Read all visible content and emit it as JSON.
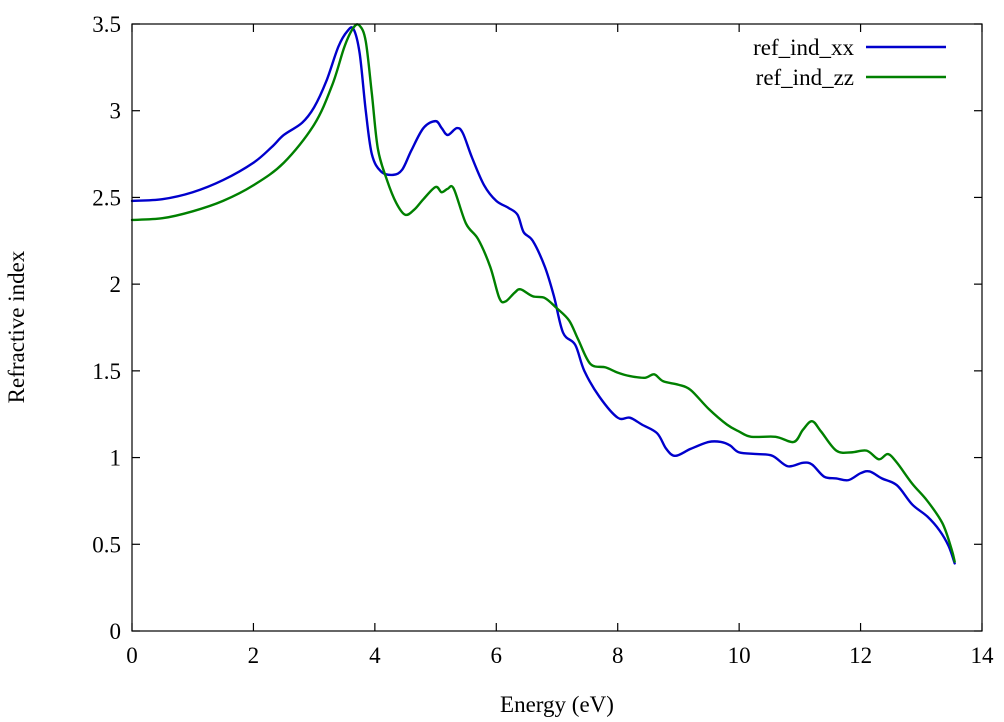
{
  "chart_data": {
    "type": "line",
    "title": "",
    "xlabel": "Energy (eV)",
    "ylabel": "Refractive index",
    "xlim": [
      0,
      14
    ],
    "ylim": [
      0,
      3.5
    ],
    "xticks": [
      0,
      2,
      4,
      6,
      8,
      10,
      12,
      14
    ],
    "yticks": [
      0,
      0.5,
      1,
      1.5,
      2,
      2.5,
      3,
      3.5
    ],
    "xtick_labels": [
      "0",
      "2",
      "4",
      "6",
      "8",
      "10",
      "12",
      "14"
    ],
    "ytick_labels": [
      "0",
      "0.5",
      "1",
      "1.5",
      "2",
      "2.5",
      "3",
      "3.5"
    ],
    "grid": false,
    "legend_position": "top-right",
    "series": [
      {
        "name": "ref_ind_xx",
        "color": "#0000cc",
        "points": [
          [
            0,
            2.48
          ],
          [
            0.5,
            2.49
          ],
          [
            1.0,
            2.53
          ],
          [
            1.5,
            2.6
          ],
          [
            2.0,
            2.7
          ],
          [
            2.3,
            2.79
          ],
          [
            2.5,
            2.86
          ],
          [
            2.8,
            2.93
          ],
          [
            3.0,
            3.02
          ],
          [
            3.2,
            3.17
          ],
          [
            3.4,
            3.37
          ],
          [
            3.55,
            3.46
          ],
          [
            3.65,
            3.47
          ],
          [
            3.75,
            3.33
          ],
          [
            3.85,
            3.0
          ],
          [
            3.95,
            2.75
          ],
          [
            4.1,
            2.65
          ],
          [
            4.3,
            2.63
          ],
          [
            4.45,
            2.66
          ],
          [
            4.6,
            2.77
          ],
          [
            4.8,
            2.9
          ],
          [
            5.0,
            2.94
          ],
          [
            5.1,
            2.9
          ],
          [
            5.2,
            2.86
          ],
          [
            5.35,
            2.9
          ],
          [
            5.45,
            2.87
          ],
          [
            5.6,
            2.73
          ],
          [
            5.8,
            2.57
          ],
          [
            6.0,
            2.48
          ],
          [
            6.2,
            2.44
          ],
          [
            6.35,
            2.4
          ],
          [
            6.45,
            2.3
          ],
          [
            6.6,
            2.25
          ],
          [
            6.8,
            2.1
          ],
          [
            6.95,
            1.93
          ],
          [
            7.1,
            1.72
          ],
          [
            7.3,
            1.65
          ],
          [
            7.45,
            1.5
          ],
          [
            7.7,
            1.35
          ],
          [
            8.0,
            1.23
          ],
          [
            8.2,
            1.23
          ],
          [
            8.4,
            1.19
          ],
          [
            8.65,
            1.14
          ],
          [
            8.8,
            1.05
          ],
          [
            8.95,
            1.01
          ],
          [
            9.2,
            1.05
          ],
          [
            9.5,
            1.09
          ],
          [
            9.7,
            1.09
          ],
          [
            9.85,
            1.07
          ],
          [
            10.0,
            1.03
          ],
          [
            10.3,
            1.02
          ],
          [
            10.55,
            1.01
          ],
          [
            10.8,
            0.95
          ],
          [
            11.05,
            0.97
          ],
          [
            11.2,
            0.96
          ],
          [
            11.4,
            0.89
          ],
          [
            11.6,
            0.88
          ],
          [
            11.8,
            0.87
          ],
          [
            12.0,
            0.91
          ],
          [
            12.15,
            0.92
          ],
          [
            12.35,
            0.88
          ],
          [
            12.6,
            0.84
          ],
          [
            12.85,
            0.73
          ],
          [
            13.1,
            0.66
          ],
          [
            13.3,
            0.58
          ],
          [
            13.45,
            0.49
          ],
          [
            13.55,
            0.39
          ]
        ]
      },
      {
        "name": "ref_ind_zz",
        "color": "#008000",
        "points": [
          [
            0,
            2.37
          ],
          [
            0.5,
            2.38
          ],
          [
            1.0,
            2.42
          ],
          [
            1.5,
            2.48
          ],
          [
            2.0,
            2.57
          ],
          [
            2.5,
            2.7
          ],
          [
            3.0,
            2.92
          ],
          [
            3.3,
            3.15
          ],
          [
            3.5,
            3.37
          ],
          [
            3.65,
            3.48
          ],
          [
            3.75,
            3.49
          ],
          [
            3.85,
            3.4
          ],
          [
            3.95,
            3.1
          ],
          [
            4.05,
            2.78
          ],
          [
            4.2,
            2.6
          ],
          [
            4.35,
            2.47
          ],
          [
            4.5,
            2.4
          ],
          [
            4.65,
            2.43
          ],
          [
            4.8,
            2.49
          ],
          [
            5.0,
            2.56
          ],
          [
            5.1,
            2.53
          ],
          [
            5.2,
            2.55
          ],
          [
            5.3,
            2.55
          ],
          [
            5.5,
            2.35
          ],
          [
            5.7,
            2.26
          ],
          [
            5.9,
            2.1
          ],
          [
            6.05,
            1.92
          ],
          [
            6.15,
            1.9
          ],
          [
            6.3,
            1.95
          ],
          [
            6.4,
            1.97
          ],
          [
            6.6,
            1.93
          ],
          [
            6.8,
            1.92
          ],
          [
            7.0,
            1.86
          ],
          [
            7.2,
            1.79
          ],
          [
            7.35,
            1.68
          ],
          [
            7.55,
            1.54
          ],
          [
            7.8,
            1.52
          ],
          [
            8.0,
            1.49
          ],
          [
            8.2,
            1.47
          ],
          [
            8.45,
            1.46
          ],
          [
            8.6,
            1.48
          ],
          [
            8.75,
            1.44
          ],
          [
            9.0,
            1.42
          ],
          [
            9.2,
            1.39
          ],
          [
            9.5,
            1.28
          ],
          [
            9.8,
            1.19
          ],
          [
            10.0,
            1.15
          ],
          [
            10.2,
            1.12
          ],
          [
            10.6,
            1.12
          ],
          [
            10.9,
            1.09
          ],
          [
            11.05,
            1.16
          ],
          [
            11.2,
            1.21
          ],
          [
            11.35,
            1.15
          ],
          [
            11.6,
            1.04
          ],
          [
            11.85,
            1.03
          ],
          [
            12.1,
            1.04
          ],
          [
            12.3,
            0.99
          ],
          [
            12.45,
            1.02
          ],
          [
            12.6,
            0.97
          ],
          [
            12.85,
            0.85
          ],
          [
            13.1,
            0.75
          ],
          [
            13.35,
            0.62
          ],
          [
            13.5,
            0.47
          ],
          [
            13.55,
            0.4
          ]
        ]
      }
    ]
  }
}
